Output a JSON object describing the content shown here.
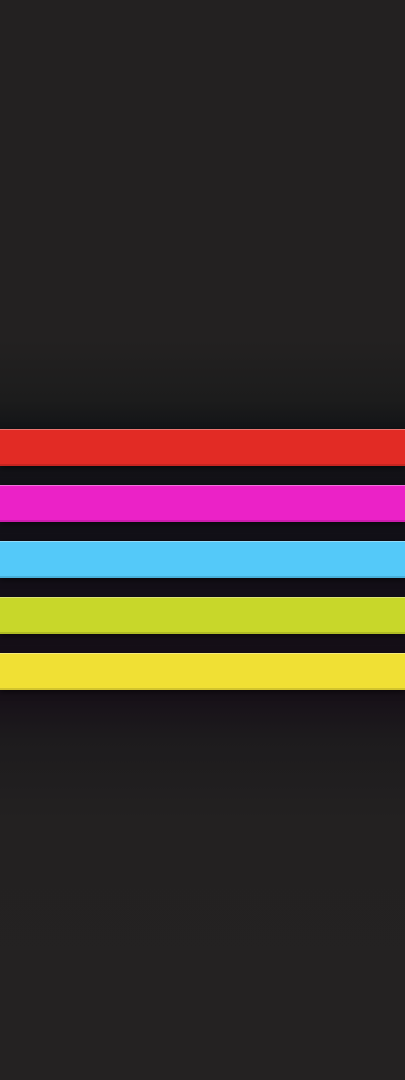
{
  "wallpaper": {
    "background_color": "#232121",
    "stripes": [
      {
        "color": "#e22b25",
        "name": "red"
      },
      {
        "color": "#eb22c7",
        "name": "magenta"
      },
      {
        "color": "#54c9f9",
        "name": "light-blue"
      },
      {
        "color": "#c8d72a",
        "name": "lime"
      },
      {
        "color": "#f0e034",
        "name": "yellow"
      }
    ]
  }
}
